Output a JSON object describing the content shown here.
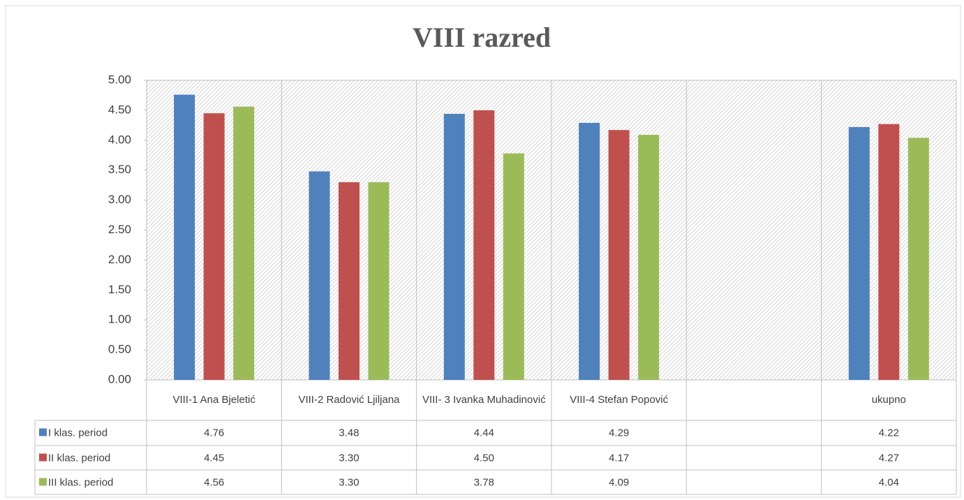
{
  "chart_data": {
    "type": "bar",
    "title": "VIII razred",
    "categories": [
      "VIII-1 Ana Bjeletić",
      "VIII-2 Radović Ljiljana",
      "VIII- 3 Ivanka Muhadinović",
      "VIII-4  Stefan Popović",
      null,
      "ukupno"
    ],
    "series": [
      {
        "name": "I klas. period",
        "color": "#4f81bd",
        "values": [
          4.76,
          3.48,
          4.44,
          4.29,
          null,
          4.22
        ],
        "value_labels": [
          "4.76",
          "3.48",
          "4.44",
          "4.29",
          null,
          "4.22"
        ]
      },
      {
        "name": "II  klas. period",
        "color": "#c0504d",
        "values": [
          4.45,
          3.3,
          4.5,
          4.17,
          null,
          4.27
        ],
        "value_labels": [
          "4.45",
          "3.30",
          "4.50",
          "4.17",
          null,
          "4.27"
        ]
      },
      {
        "name": "III  klas. period",
        "color": "#9bbb59",
        "values": [
          4.56,
          3.3,
          3.78,
          4.09,
          null,
          4.04
        ],
        "value_labels": [
          "4.56",
          "3.30",
          "3.78",
          "4.09",
          null,
          "4.04"
        ]
      }
    ],
    "ylim": [
      0,
      5
    ],
    "yticks": [
      {
        "value": 0,
        "label": "0.00"
      },
      {
        "value": 0.5,
        "label": "0.50"
      },
      {
        "value": 1,
        "label": "1.00"
      },
      {
        "value": 1.5,
        "label": "1.50"
      },
      {
        "value": 2,
        "label": "2.00"
      },
      {
        "value": 2.5,
        "label": "2.50"
      },
      {
        "value": 3,
        "label": "3.00"
      },
      {
        "value": 3.5,
        "label": "3.50"
      },
      {
        "value": 4,
        "label": "4.00"
      },
      {
        "value": 4.5,
        "label": "4.50"
      },
      {
        "value": 5,
        "label": "5.00"
      }
    ]
  }
}
